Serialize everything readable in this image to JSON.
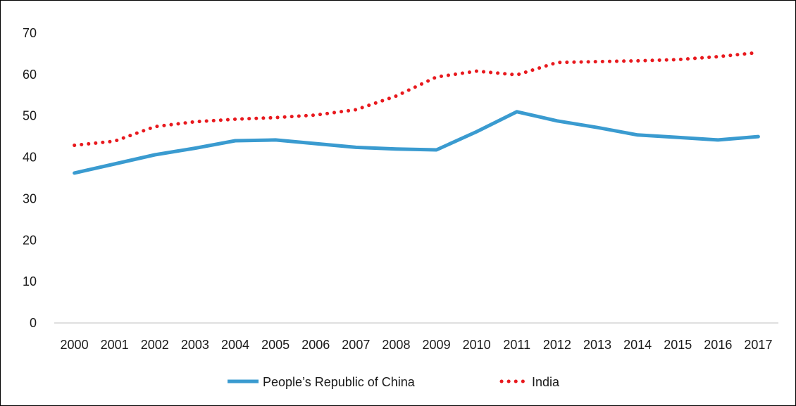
{
  "chart_data": {
    "type": "line",
    "title": "",
    "xlabel": "",
    "ylabel": "",
    "categories": [
      "2000",
      "2001",
      "2002",
      "2003",
      "2004",
      "2005",
      "2006",
      "2007",
      "2008",
      "2009",
      "2010",
      "2011",
      "2012",
      "2013",
      "2014",
      "2015",
      "2016",
      "2017"
    ],
    "ylim": [
      0,
      70
    ],
    "yticks": [
      "0",
      "10",
      "20",
      "30",
      "40",
      "50",
      "60",
      "70"
    ],
    "grid": false,
    "legend_position": "bottom",
    "series": [
      {
        "name": "People’s Republic of China",
        "color": "#3a9bd0",
        "style": "solid",
        "values": [
          36.2,
          38.4,
          40.6,
          42.2,
          44.0,
          44.2,
          43.3,
          42.4,
          42.0,
          41.8,
          46.2,
          51.0,
          48.8,
          47.2,
          45.4,
          44.8,
          44.2,
          45.0
        ]
      },
      {
        "name": "India",
        "color": "#e8191e",
        "style": "dotted",
        "values": [
          42.9,
          43.9,
          47.4,
          48.6,
          49.2,
          49.6,
          50.2,
          51.5,
          54.8,
          59.4,
          60.8,
          59.9,
          62.9,
          63.1,
          63.3,
          63.6,
          64.3,
          65.3
        ]
      }
    ]
  }
}
